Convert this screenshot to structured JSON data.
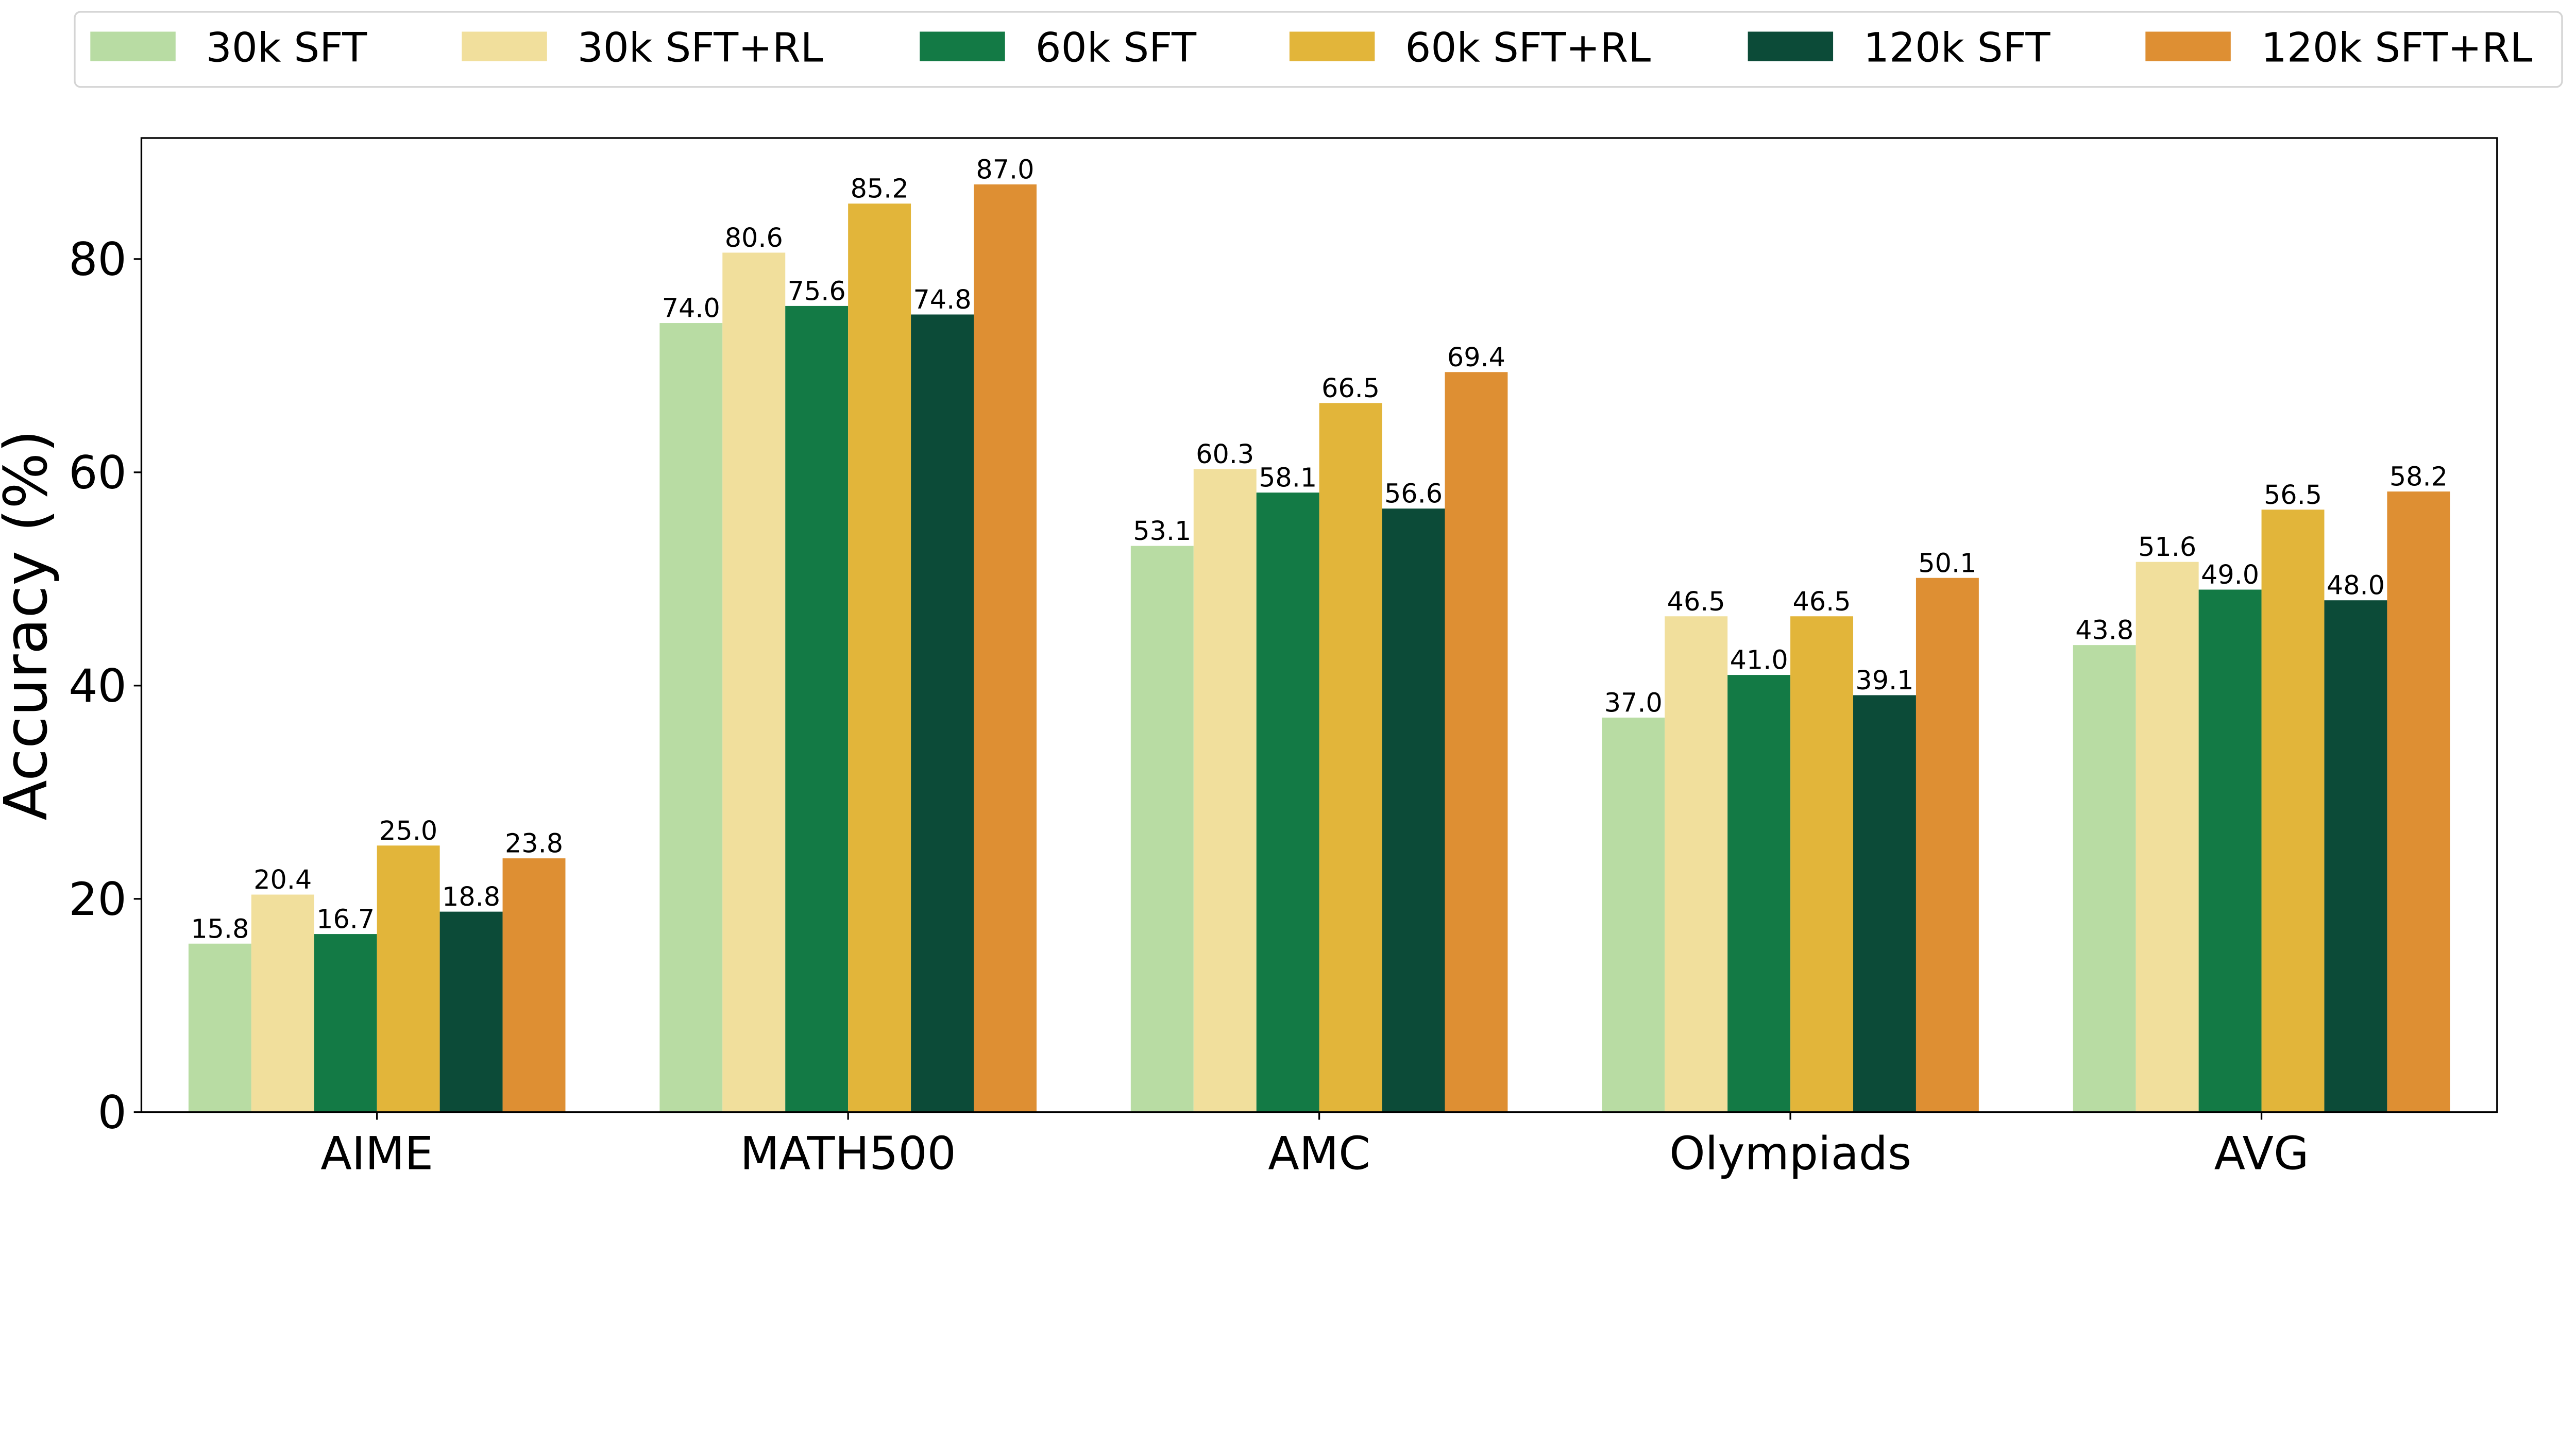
{
  "chart_data": {
    "type": "bar",
    "title": "",
    "xlabel": "",
    "ylabel": "Accuracy (%)",
    "ylim": [
      0,
      91.35
    ],
    "yticks": [
      0,
      20,
      40,
      60,
      80
    ],
    "grid": false,
    "legend_placement": "top, above plot",
    "categories": [
      "AIME",
      "MATH500",
      "AMC",
      "Olympiads",
      "AVG"
    ],
    "series": [
      {
        "name": "30k SFT",
        "color": "#b8dca3",
        "values": [
          15.8,
          74.0,
          53.1,
          37.0,
          43.8
        ]
      },
      {
        "name": "30k SFT+RL",
        "color": "#f1df9c",
        "values": [
          20.4,
          80.6,
          60.3,
          46.5,
          51.6
        ]
      },
      {
        "name": "60k SFT",
        "color": "#137a45",
        "values": [
          16.7,
          75.6,
          58.1,
          41.0,
          49.0
        ]
      },
      {
        "name": "60k SFT+RL",
        "color": "#e2b53a",
        "values": [
          25.0,
          85.2,
          66.5,
          46.5,
          56.5
        ]
      },
      {
        "name": "120k SFT",
        "color": "#0c4b38",
        "values": [
          18.8,
          74.8,
          56.6,
          39.1,
          48.0
        ]
      },
      {
        "name": "120k SFT+RL",
        "color": "#de8f33",
        "values": [
          23.8,
          87.0,
          69.4,
          50.1,
          58.2
        ]
      }
    ]
  }
}
